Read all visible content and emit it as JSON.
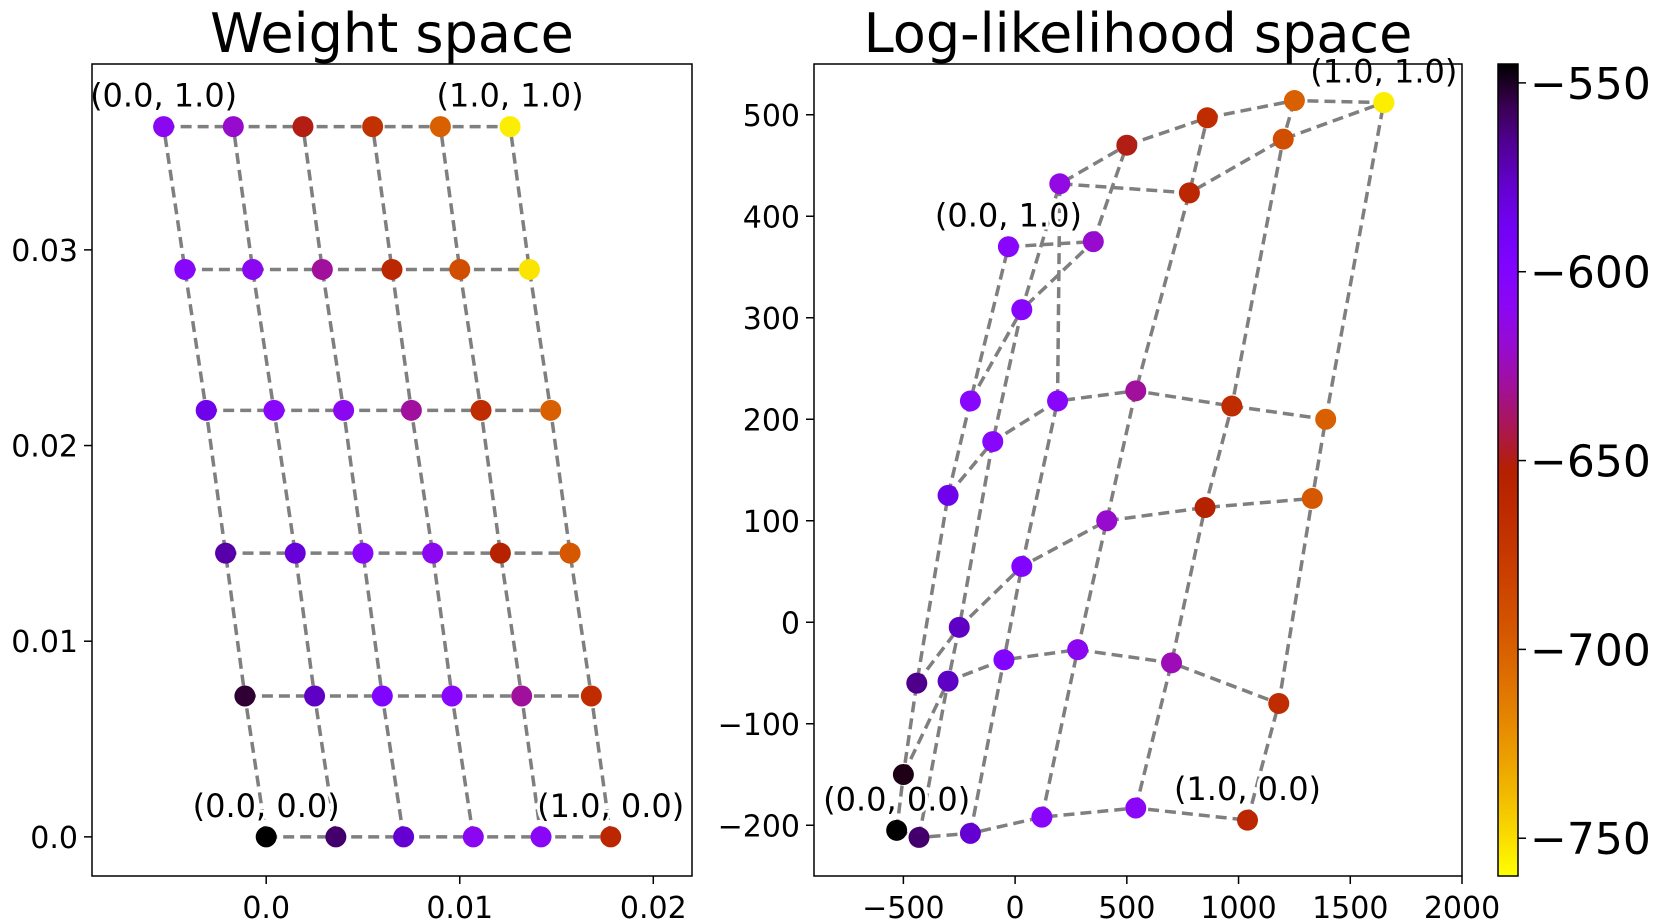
{
  "chart_data": [
    {
      "type": "scatter",
      "title": "Weight space",
      "xlim": [
        -0.009,
        0.022
      ],
      "ylim": [
        -0.002,
        0.0395
      ],
      "x_ticks": [
        0.0,
        0.01,
        0.02
      ],
      "x_tick_labels": [
        "0.0",
        "0.01",
        "0.02"
      ],
      "y_ticks": [
        0.0,
        0.01,
        0.02,
        0.03
      ],
      "y_tick_labels": [
        "0.0",
        "0.01",
        "0.02",
        "0.03"
      ],
      "grid": false,
      "grid_lines": "dashed-gray",
      "points": [
        [
          [
            0.0,
            0.0,
            -545
          ],
          [
            -0.0011,
            0.0072,
            -552
          ],
          [
            -0.0021,
            0.0145,
            -570
          ],
          [
            -0.0031,
            0.0218,
            -585
          ],
          [
            -0.0042,
            0.029,
            -605
          ],
          [
            -0.0053,
            0.0363,
            -610
          ]
        ],
        [
          [
            0.0036,
            0.0,
            -560
          ],
          [
            0.0025,
            0.0072,
            -575
          ],
          [
            0.0015,
            0.0145,
            -580
          ],
          [
            0.0004,
            0.0218,
            -605
          ],
          [
            -0.0007,
            0.029,
            -610
          ],
          [
            -0.0017,
            0.0363,
            -620
          ]
        ],
        [
          [
            0.0071,
            0.0,
            -578
          ],
          [
            0.006,
            0.0072,
            -600
          ],
          [
            0.005,
            0.0145,
            -605
          ],
          [
            0.004,
            0.0218,
            -610
          ],
          [
            0.0029,
            0.029,
            -630
          ],
          [
            0.0019,
            0.0363,
            -650
          ]
        ],
        [
          [
            0.0107,
            0.0,
            -610
          ],
          [
            0.0096,
            0.0072,
            -605
          ],
          [
            0.0086,
            0.0145,
            -610
          ],
          [
            0.0075,
            0.0218,
            -630
          ],
          [
            0.0065,
            0.029,
            -660
          ],
          [
            0.0055,
            0.0363,
            -670
          ]
        ],
        [
          [
            0.0142,
            0.0,
            -608
          ],
          [
            0.0132,
            0.0072,
            -630
          ],
          [
            0.0121,
            0.0145,
            -655
          ],
          [
            0.0111,
            0.0218,
            -665
          ],
          [
            0.01,
            0.029,
            -690
          ],
          [
            0.009,
            0.0363,
            -700
          ]
        ],
        [
          [
            0.0178,
            0.0,
            -660
          ],
          [
            0.0168,
            0.0072,
            -665
          ],
          [
            0.0157,
            0.0145,
            -695
          ],
          [
            0.0147,
            0.0218,
            -700
          ],
          [
            0.0136,
            0.029,
            -752
          ],
          [
            0.0126,
            0.0363,
            -755
          ]
        ]
      ],
      "annotations": [
        {
          "text": "(0.0, 1.0)",
          "x": -0.0053,
          "y": 0.0363
        },
        {
          "text": "(1.0, 1.0)",
          "x": 0.0126,
          "y": 0.0363
        },
        {
          "text": "(0.0, 0.0)",
          "x": 0.0,
          "y": 0.0
        },
        {
          "text": "(1.0, 0.0)",
          "x": 0.0178,
          "y": 0.0
        }
      ]
    },
    {
      "type": "scatter",
      "title": "Log-likelihood space",
      "xlim": [
        -900,
        2000
      ],
      "ylim": [
        -250,
        550
      ],
      "x_ticks": [
        -500,
        0,
        500,
        1000,
        1500,
        2000
      ],
      "x_tick_labels": [
        "−500",
        "0",
        "500",
        "1000",
        "1500",
        "2000"
      ],
      "y_ticks": [
        -200,
        -100,
        0,
        100,
        200,
        300,
        400,
        500
      ],
      "y_tick_labels": [
        "−200",
        "−100",
        "0",
        "100",
        "200",
        "300",
        "400",
        "500"
      ],
      "grid": false,
      "points": [
        [
          [
            -530,
            -205,
            -545
          ],
          [
            -500,
            -150,
            -548
          ],
          [
            -440,
            -60,
            -565
          ],
          [
            -300,
            125,
            -585
          ],
          [
            -200,
            218,
            -605
          ],
          [
            -30,
            370,
            -605
          ]
        ],
        [
          [
            -430,
            -212,
            -560
          ],
          [
            -300,
            -58,
            -575
          ],
          [
            -250,
            -5,
            -575
          ],
          [
            -100,
            178,
            -605
          ],
          [
            30,
            308,
            -605
          ],
          [
            350,
            375,
            -620
          ]
        ],
        [
          [
            -200,
            -208,
            -578
          ],
          [
            -50,
            -37,
            -600
          ],
          [
            30,
            55,
            -600
          ],
          [
            190,
            218,
            -605
          ],
          [
            200,
            432,
            -615
          ],
          [
            500,
            470,
            -650
          ]
        ],
        [
          [
            120,
            -192,
            -605
          ],
          [
            280,
            -27,
            -610
          ],
          [
            410,
            100,
            -620
          ],
          [
            540,
            228,
            -630
          ],
          [
            780,
            423,
            -660
          ],
          [
            860,
            497,
            -665
          ]
        ],
        [
          [
            540,
            -183,
            -608
          ],
          [
            700,
            -40,
            -625
          ],
          [
            850,
            113,
            -655
          ],
          [
            970,
            213,
            -665
          ],
          [
            1200,
            476,
            -690
          ],
          [
            1250,
            514,
            -700
          ]
        ],
        [
          [
            1040,
            -195,
            -660
          ],
          [
            1180,
            -80,
            -665
          ],
          [
            1330,
            122,
            -695
          ],
          [
            1390,
            200,
            -700
          ],
          [
            1650,
            512,
            -752
          ],
          [
            1650,
            512,
            -755
          ]
        ]
      ],
      "annotations": [
        {
          "text": "(0.0, 1.0)",
          "x": -30,
          "y": 370
        },
        {
          "text": "(1.0, 1.0)",
          "x": 1650,
          "y": 512
        },
        {
          "text": "(0.0, 0.0)",
          "x": -530,
          "y": -205
        },
        {
          "text": "(1.0, 0.0)",
          "x": 1040,
          "y": -195
        }
      ]
    }
  ],
  "colorbar": {
    "min": -760,
    "max": -545,
    "ticks": [
      -550,
      -600,
      -650,
      -700,
      -750
    ],
    "tick_labels": [
      "−550",
      "−600",
      "−650",
      "−700",
      "−750"
    ],
    "colormap": "gnuplot",
    "low_color": "#ffff00",
    "high_color": "#000000"
  }
}
